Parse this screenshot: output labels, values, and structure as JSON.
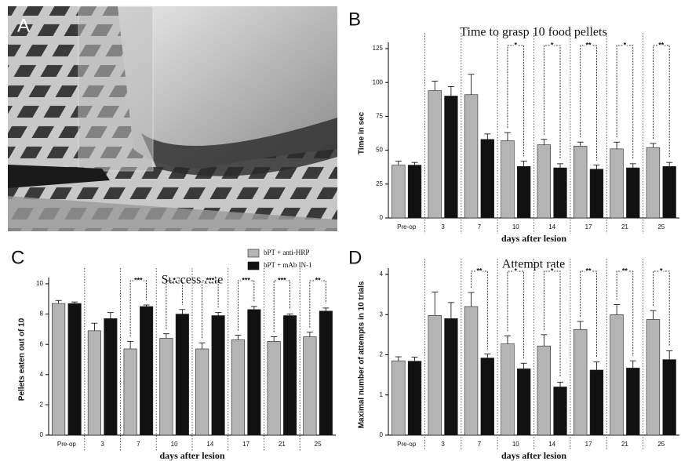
{
  "photo_panel": {
    "label": "A"
  },
  "chart_data": [
    {
      "type": "bar",
      "panel": "B",
      "title": "Time to grasp 10 food pellets",
      "ylabel": "Time in sec",
      "xlabel": "days after lesion",
      "categories": [
        "Pre-op",
        "3",
        "7",
        "10",
        "14",
        "17",
        "21",
        "25"
      ],
      "series": [
        {
          "color": "#b4b4b4",
          "values": [
            39,
            94,
            91,
            57,
            54,
            53,
            51,
            52
          ],
          "errors": [
            3,
            7,
            15,
            6,
            4,
            3,
            5,
            3
          ]
        },
        {
          "color": "#111111",
          "values": [
            39,
            90,
            58,
            38,
            37,
            36,
            37,
            38
          ],
          "errors": [
            2,
            7,
            4,
            4,
            3,
            3,
            3,
            3
          ]
        }
      ],
      "significance": [
        null,
        null,
        null,
        "*",
        "*",
        "**",
        "*",
        "**"
      ],
      "ylim": [
        0,
        125
      ],
      "yticks": [
        0,
        25,
        50,
        75,
        100,
        125
      ],
      "legend": false
    },
    {
      "type": "bar",
      "panel": "C",
      "title": "Success rate",
      "ylabel": "Pellets eaten out of 10",
      "xlabel": "days after lesion",
      "categories": [
        "Pre-op",
        "3",
        "7",
        "10",
        "14",
        "17",
        "21",
        "25"
      ],
      "series": [
        {
          "name": "bPT + anti-HRP",
          "color": "#b4b4b4",
          "values": [
            8.7,
            6.9,
            5.7,
            6.4,
            5.7,
            6.3,
            6.2,
            6.5
          ],
          "errors": [
            0.2,
            0.5,
            0.5,
            0.3,
            0.4,
            0.3,
            0.3,
            0.3
          ]
        },
        {
          "name": "bPT + mAb IN-1",
          "color": "#111111",
          "values": [
            8.7,
            7.7,
            8.5,
            8.0,
            7.9,
            8.3,
            7.9,
            8.2
          ],
          "errors": [
            0.1,
            0.4,
            0.1,
            0.3,
            0.2,
            0.2,
            0.1,
            0.2
          ]
        }
      ],
      "significance": [
        null,
        null,
        "***",
        "*",
        "***",
        "***",
        "***",
        "**"
      ],
      "ylim": [
        0,
        10
      ],
      "yticks": [
        0,
        2,
        4,
        6,
        8,
        10
      ],
      "legend": true,
      "legend_position": "upper right"
    },
    {
      "type": "bar",
      "panel": "D",
      "title": "Attempt rate",
      "ylabel": "Maximal number of attempts in 10 trials",
      "xlabel": "days after lesion",
      "categories": [
        "Pre-op",
        "3",
        "7",
        "10",
        "14",
        "17",
        "21",
        "25"
      ],
      "series": [
        {
          "color": "#b4b4b4",
          "values": [
            1.85,
            2.98,
            3.2,
            2.27,
            2.22,
            2.63,
            3.0,
            2.88
          ],
          "errors": [
            0.1,
            0.58,
            0.35,
            0.2,
            0.28,
            0.2,
            0.25,
            0.22
          ]
        },
        {
          "color": "#111111",
          "values": [
            1.84,
            2.9,
            1.92,
            1.65,
            1.2,
            1.62,
            1.67,
            1.88
          ],
          "errors": [
            0.1,
            0.4,
            0.1,
            0.14,
            0.12,
            0.2,
            0.18,
            0.22
          ]
        }
      ],
      "significance": [
        null,
        null,
        "**",
        "*",
        "*",
        "**",
        "**",
        "*"
      ],
      "ylim": [
        0,
        4
      ],
      "yticks": [
        0,
        1,
        2,
        3,
        4
      ],
      "legend": false
    }
  ]
}
